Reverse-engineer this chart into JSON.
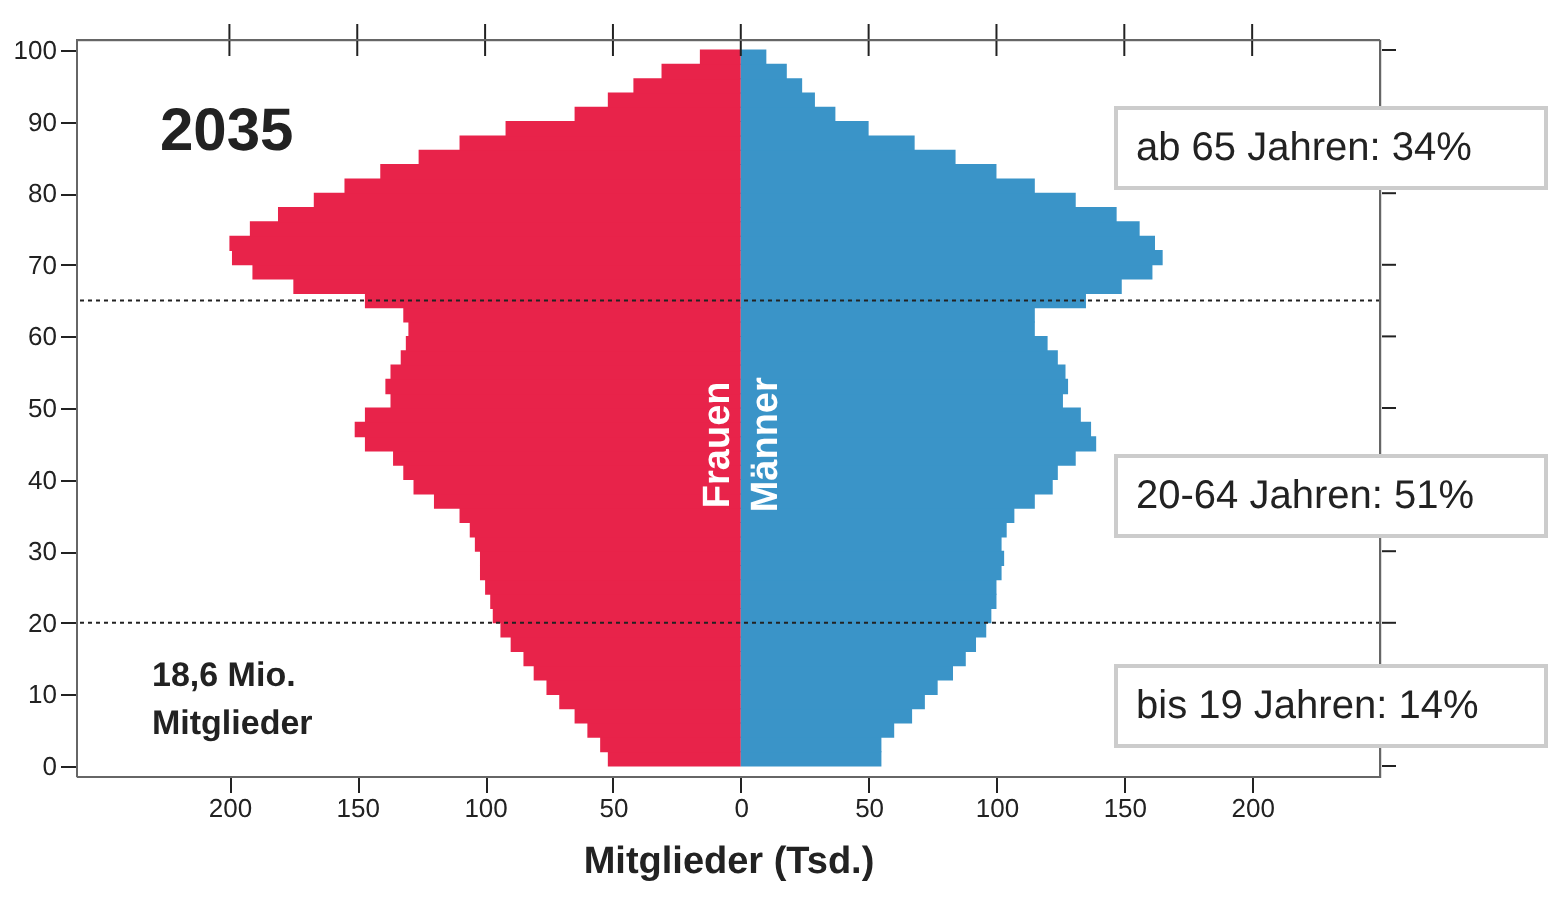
{
  "chart_data": {
    "type": "bar",
    "orientation": "horizontal",
    "xlabel": "Mitglieder (Tsd.)",
    "x": [
      1,
      3,
      5,
      7,
      9,
      11,
      13,
      15,
      17,
      19,
      21,
      23,
      25,
      27,
      29,
      31,
      33,
      35,
      37,
      39,
      41,
      43,
      45,
      47,
      49,
      51,
      53,
      55,
      57,
      59,
      61,
      63,
      65,
      67,
      69,
      71,
      73,
      75,
      77,
      79,
      81,
      83,
      85,
      87,
      89,
      91,
      93,
      95,
      97,
      99
    ],
    "series": [
      {
        "name": "Frauen",
        "color": "#e8234a",
        "values": [
          -52,
          -55,
          -60,
          -65,
          -71,
          -76,
          -81,
          -85,
          -90,
          -94,
          -97,
          -98,
          -100,
          -102,
          -102,
          -104,
          -106,
          -110,
          -120,
          -128,
          -132,
          -136,
          -147,
          -151,
          -147,
          -137,
          -139,
          -137,
          -133,
          -131,
          -130,
          -132,
          -147,
          -175,
          -191,
          -199,
          -200,
          -192,
          -181,
          -167,
          -155,
          -141,
          -126,
          -110,
          -92,
          -65,
          -52,
          -42,
          -31,
          -16
        ]
      },
      {
        "name": "Männer",
        "color": "#3a94c8",
        "values": [
          55,
          55,
          60,
          67,
          72,
          77,
          83,
          88,
          92,
          96,
          98,
          100,
          100,
          102,
          103,
          102,
          104,
          107,
          115,
          122,
          124,
          131,
          139,
          137,
          133,
          126,
          128,
          127,
          124,
          120,
          115,
          115,
          135,
          149,
          161,
          165,
          162,
          156,
          147,
          131,
          115,
          100,
          84,
          68,
          50,
          37,
          29,
          24,
          18,
          10
        ]
      }
    ],
    "xlim": [
      -260,
      250
    ],
    "xticks": [
      {
        "value": -200,
        "label": "200"
      },
      {
        "value": -150,
        "label": "150"
      },
      {
        "value": -100,
        "label": "100"
      },
      {
        "value": -50,
        "label": "50"
      },
      0,
      50,
      100,
      150,
      200
    ],
    "ylim": [
      0,
      100
    ],
    "yticks": [
      0,
      10,
      20,
      30,
      40,
      50,
      60,
      70,
      80,
      90,
      100
    ],
    "ref_lines": [
      {
        "axis": "y",
        "value": 65,
        "color": "#222222",
        "line_style": "dotted"
      },
      {
        "axis": "y",
        "value": 20,
        "color": "#222222",
        "line_style": "dotted"
      }
    ],
    "annotations": [
      "2035",
      "18,6 Mio. Mitglieder",
      "ab 65 Jahren: 34%",
      "20-64 Jahren: 51%",
      "bis 19 Jahren: 14%"
    ],
    "grid": false,
    "legend": false,
    "stacked": true
  }
}
